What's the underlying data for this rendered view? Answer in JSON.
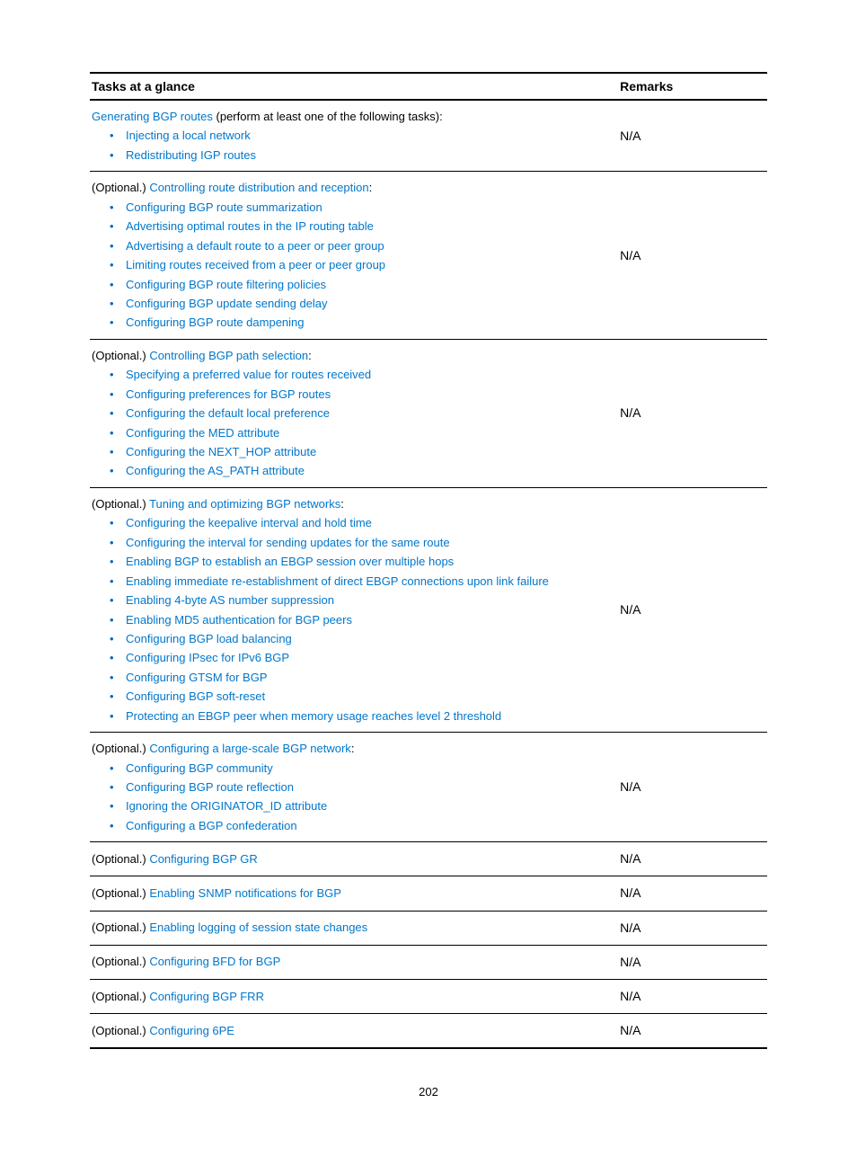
{
  "headers": {
    "tasks": "Tasks at a glance",
    "remarks": "Remarks"
  },
  "rows": [
    {
      "intro_link": "Generating BGP routes",
      "intro_suffix": " (perform at least one of the following tasks):",
      "items": [
        "Injecting a local network",
        "Redistributing IGP routes"
      ],
      "remarks": "N/A"
    },
    {
      "intro_prefix": "(Optional.) ",
      "intro_link": "Controlling route distribution and reception",
      "intro_suffix": ":",
      "items": [
        "Configuring BGP route summarization",
        "Advertising optimal routes in the IP routing table",
        "Advertising a default route to a peer or peer group",
        "Limiting routes received from a peer or peer group",
        "Configuring BGP route filtering policies",
        "Configuring BGP update sending delay",
        "Configuring BGP route dampening"
      ],
      "remarks": "N/A"
    },
    {
      "intro_prefix": "(Optional.) ",
      "intro_link": "Controlling BGP path selection",
      "intro_suffix": ":",
      "items": [
        "Specifying a preferred value for routes received",
        "Configuring preferences for BGP routes",
        "Configuring the default local preference",
        "Configuring the MED attribute",
        "Configuring the NEXT_HOP attribute",
        "Configuring the AS_PATH attribute"
      ],
      "remarks": "N/A"
    },
    {
      "intro_prefix": "(Optional.) ",
      "intro_link": "Tuning and optimizing BGP networks",
      "intro_suffix": ":",
      "items": [
        "Configuring the keepalive interval and hold time",
        "Configuring the interval for sending updates for the same route",
        "Enabling BGP to establish an EBGP session over multiple hops",
        "Enabling immediate re-establishment of direct EBGP connections upon link failure",
        "Enabling 4-byte AS number suppression",
        "Enabling MD5 authentication for BGP peers",
        "Configuring BGP load balancing",
        "Configuring IPsec for IPv6 BGP",
        "Configuring GTSM for BGP",
        "Configuring BGP soft-reset",
        "Protecting an EBGP peer when memory usage reaches level 2 threshold"
      ],
      "remarks": "N/A"
    },
    {
      "intro_prefix": "(Optional.) ",
      "intro_link": "Configuring a large-scale BGP network",
      "intro_suffix": ":",
      "items": [
        "Configuring BGP community",
        "Configuring BGP route reflection",
        "Ignoring the ORIGINATOR_ID attribute",
        "Configuring a BGP confederation"
      ],
      "remarks": "N/A"
    },
    {
      "intro_prefix": "(Optional.) ",
      "intro_link": "Configuring BGP GR",
      "remarks": "N/A"
    },
    {
      "intro_prefix": "(Optional.) ",
      "intro_link": "Enabling SNMP notifications for BGP",
      "remarks": "N/A"
    },
    {
      "intro_prefix": "(Optional.) ",
      "intro_link": "Enabling logging of session state changes",
      "remarks": "N/A"
    },
    {
      "intro_prefix": "(Optional.) ",
      "intro_link": "Configuring BFD for BGP",
      "remarks": "N/A"
    },
    {
      "intro_prefix": "(Optional.) ",
      "intro_link": "Configuring BGP FRR",
      "remarks": "N/A"
    },
    {
      "intro_prefix": "(Optional.) ",
      "intro_link": "Configuring 6PE",
      "remarks": "N/A"
    }
  ],
  "page_number": "202",
  "colors": {
    "link": "#0077cc",
    "text": "#000000",
    "bullet": "#0066cc"
  }
}
